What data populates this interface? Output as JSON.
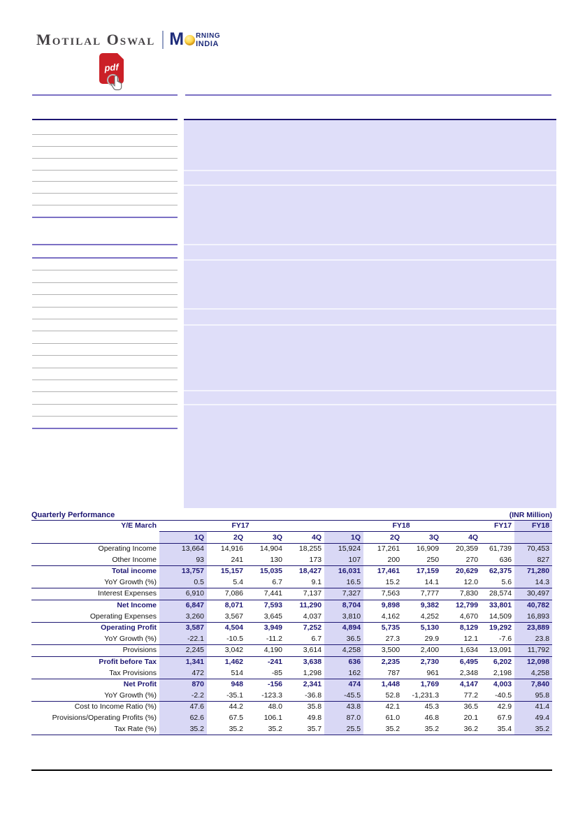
{
  "brand": {
    "logo_text": "Motilal Oswal",
    "morning_m": "M",
    "morning_top": "RNING",
    "morning_bottom": "INDIA",
    "pdf_label": "pdf"
  },
  "colors": {
    "navy": "#1d1672",
    "brand_navy": "#1f2d7b",
    "column_highlight": "#d9d8f5",
    "panel_lavender": "#dfdef9",
    "pdf_red": "#cb2027",
    "sun_yellow": "#f5b800"
  },
  "table": {
    "title": "Quarterly Performance",
    "unit_label": "(INR Million)",
    "ye_label": "Y/E March",
    "group_headers": [
      "FY17",
      "FY18",
      "FY17",
      "FY18"
    ],
    "quarter_headers": [
      "1Q",
      "2Q",
      "3Q",
      "4Q",
      "1Q",
      "2Q",
      "3Q",
      "4Q",
      "",
      ""
    ],
    "highlighted_columns": [
      0,
      4,
      9
    ],
    "rows": [
      {
        "label": "Operating Income",
        "style": "normal",
        "top_border": false,
        "values": [
          "13,664",
          "14,916",
          "14,904",
          "18,255",
          "15,924",
          "17,261",
          "16,909",
          "20,359",
          "61,739",
          "70,453"
        ]
      },
      {
        "label": "Other Income",
        "style": "normal",
        "top_border": false,
        "values": [
          "93",
          "241",
          "130",
          "173",
          "107",
          "200",
          "250",
          "270",
          "636",
          "827"
        ]
      },
      {
        "label": "Total income",
        "style": "bold",
        "top_border": true,
        "values": [
          "13,757",
          "15,157",
          "15,035",
          "18,427",
          "16,031",
          "17,461",
          "17,159",
          "20,629",
          "62,375",
          "71,280"
        ]
      },
      {
        "label": "YoY Growth (%)",
        "style": "sub",
        "top_border": false,
        "values": [
          "0.5",
          "5.4",
          "6.7",
          "9.1",
          "16.5",
          "15.2",
          "14.1",
          "12.0",
          "5.6",
          "14.3"
        ]
      },
      {
        "label": "Interest Expenses",
        "style": "normal",
        "top_border": true,
        "values": [
          "6,910",
          "7,086",
          "7,441",
          "7,137",
          "7,327",
          "7,563",
          "7,777",
          "7,830",
          "28,574",
          "30,497"
        ]
      },
      {
        "label": "Net Income",
        "style": "bold",
        "top_border": true,
        "values": [
          "6,847",
          "8,071",
          "7,593",
          "11,290",
          "8,704",
          "9,898",
          "9,382",
          "12,799",
          "33,801",
          "40,782"
        ]
      },
      {
        "label": "Operating Expenses",
        "style": "normal",
        "top_border": false,
        "values": [
          "3,260",
          "3,567",
          "3,645",
          "4,037",
          "3,810",
          "4,162",
          "4,252",
          "4,670",
          "14,509",
          "16,893"
        ]
      },
      {
        "label": "Operating Profit",
        "style": "bold",
        "top_border": true,
        "values": [
          "3,587",
          "4,504",
          "3,949",
          "7,252",
          "4,894",
          "5,735",
          "5,130",
          "8,129",
          "19,292",
          "23,889"
        ]
      },
      {
        "label": "YoY Growth (%)",
        "style": "sub",
        "top_border": false,
        "values": [
          "-22.1",
          "-10.5",
          "-11.2",
          "6.7",
          "36.5",
          "27.3",
          "29.9",
          "12.1",
          "-7.6",
          "23.8"
        ]
      },
      {
        "label": "Provisions",
        "style": "normal",
        "top_border": true,
        "values": [
          "2,245",
          "3,042",
          "4,190",
          "3,614",
          "4,258",
          "3,500",
          "2,400",
          "1,634",
          "13,091",
          "11,792"
        ]
      },
      {
        "label": "Profit before Tax",
        "style": "bold",
        "top_border": true,
        "values": [
          "1,341",
          "1,462",
          "-241",
          "3,638",
          "636",
          "2,235",
          "2,730",
          "6,495",
          "6,202",
          "12,098"
        ]
      },
      {
        "label": "Tax Provisions",
        "style": "normal",
        "top_border": false,
        "values": [
          "472",
          "514",
          "-85",
          "1,298",
          "162",
          "787",
          "961",
          "2,348",
          "2,198",
          "4,258"
        ]
      },
      {
        "label": "Net Profit",
        "style": "bold",
        "top_border": true,
        "values": [
          "870",
          "948",
          "-156",
          "2,341",
          "474",
          "1,448",
          "1,769",
          "4,147",
          "4,003",
          "7,840"
        ]
      },
      {
        "label": "YoY Growth (%)",
        "style": "sub",
        "top_border": false,
        "values": [
          "-2.2",
          "-35.1",
          "-123.3",
          "-36.8",
          "-45.5",
          "52.8",
          "-1,231.3",
          "77.2",
          "-40.5",
          "95.8"
        ]
      },
      {
        "label": "Cost to Income Ratio (%)",
        "style": "normal",
        "top_border": true,
        "values": [
          "47.6",
          "44.2",
          "48.0",
          "35.8",
          "43.8",
          "42.1",
          "45.3",
          "36.5",
          "42.9",
          "41.4"
        ]
      },
      {
        "label": "Provisions/Operating Profits (%)",
        "style": "normal",
        "top_border": false,
        "values": [
          "62.6",
          "67.5",
          "106.1",
          "49.8",
          "87.0",
          "61.0",
          "46.8",
          "20.1",
          "67.9",
          "49.4"
        ]
      },
      {
        "label": "Tax Rate (%)",
        "style": "normal",
        "top_border": false,
        "values": [
          "35.2",
          "35.2",
          "35.2",
          "35.7",
          "25.5",
          "35.2",
          "35.2",
          "36.2",
          "35.4",
          "35.2"
        ]
      }
    ]
  }
}
